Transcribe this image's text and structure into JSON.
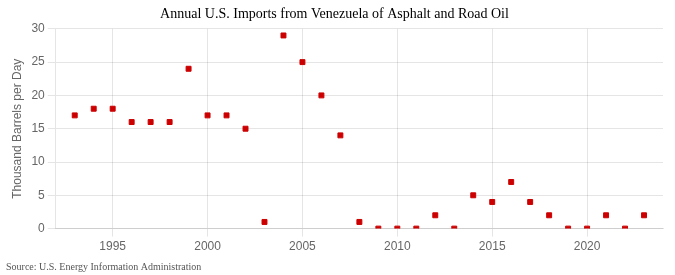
{
  "chart_data": {
    "type": "scatter",
    "title": "Annual U.S. Imports from Venezuela of Asphalt and Road Oil",
    "ylabel": "Thousand Barrels per Day",
    "annotations": [
      "Source: U.S. Energy Information Administration"
    ],
    "x": [
      1993,
      1994,
      1995,
      1996,
      1997,
      1998,
      1999,
      2000,
      2001,
      2002,
      2003,
      2004,
      2005,
      2006,
      2007,
      2008,
      2009,
      2010,
      2011,
      2012,
      2013,
      2014,
      2015,
      2016,
      2017,
      2018,
      2019,
      2020,
      2021,
      2022,
      2023
    ],
    "values": [
      17,
      18,
      18,
      16,
      16,
      16,
      24,
      17,
      17,
      15,
      1,
      29,
      25,
      20,
      14,
      1,
      0,
      0,
      0,
      2,
      0,
      5,
      4,
      7,
      4,
      2,
      0,
      0,
      2,
      0,
      2
    ],
    "color": "#cc0000",
    "marker": "square",
    "xlim": [
      1992,
      2024
    ],
    "ylim": [
      0,
      30
    ],
    "xticks": [
      1995,
      2000,
      2005,
      2010,
      2015,
      2020
    ],
    "yticks": [
      0,
      5,
      10,
      15,
      20,
      25,
      30
    ],
    "grid": true
  }
}
